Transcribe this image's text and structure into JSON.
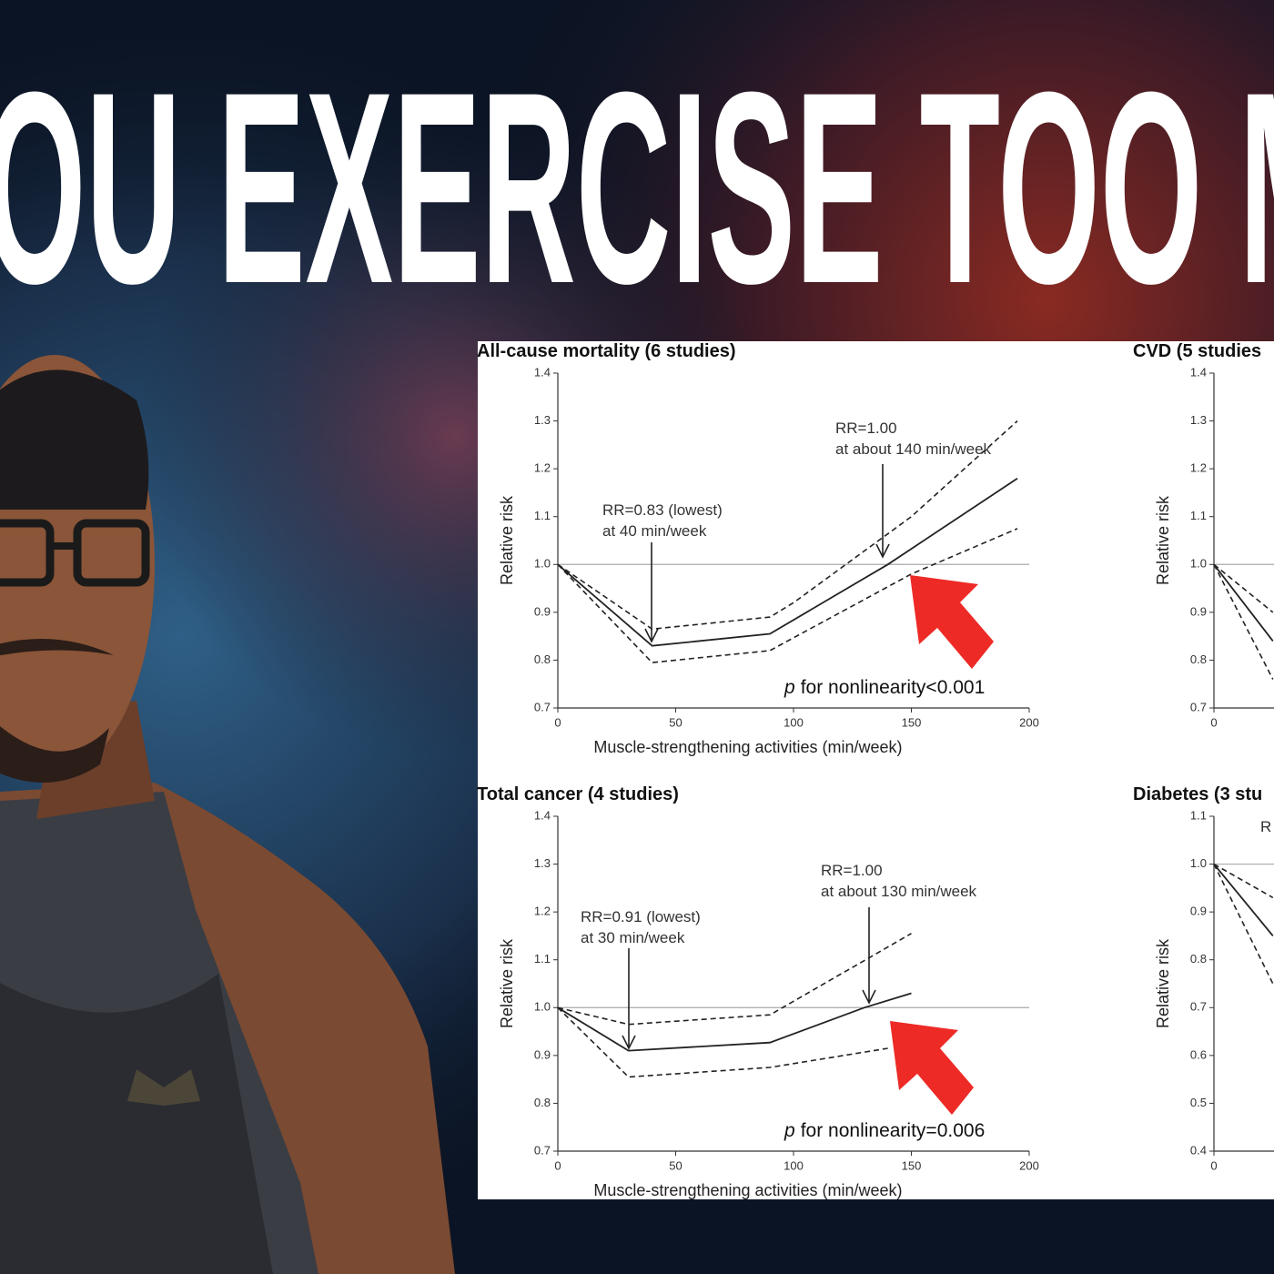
{
  "headline": "OU EXERCISE TOO M",
  "chart_data": [
    {
      "type": "line",
      "title": "All-cause mortality (6 studies)",
      "xlabel": "Muscle-strengthening activities (min/week)",
      "ylabel": "Relative risk",
      "xlim": [
        0,
        200
      ],
      "ylim": [
        0.7,
        1.4
      ],
      "xticks": [
        0,
        50,
        100,
        150,
        200
      ],
      "yticks": [
        0.7,
        0.8,
        0.9,
        {
          "value": 1,
          "label": "1.0"
        },
        1.1,
        1.2,
        1.3,
        1.4
      ],
      "reference_line": 1,
      "series": [
        {
          "color": "#222222",
          "dash": false,
          "x": [
            0,
            40,
            90,
            140,
            195
          ],
          "values": [
            1.0,
            0.83,
            0.855,
            1.0,
            1.18
          ]
        },
        {
          "color": "#222222",
          "dash": true,
          "x": [
            0,
            40,
            90,
            100,
            150,
            195
          ],
          "values": [
            1.0,
            0.865,
            0.89,
            0.92,
            1.1,
            1.3
          ]
        },
        {
          "color": "#222222",
          "dash": true,
          "x": [
            0,
            40,
            90,
            150,
            195
          ],
          "values": [
            1.0,
            0.795,
            0.82,
            0.98,
            1.075
          ]
        }
      ],
      "annotations": [
        "RR=0.83 (lowest)",
        "at 40 min/week",
        "RR=1.00",
        "at about 140 min/week"
      ],
      "note_p": "p",
      "note_text": "for nonlinearity<0.001"
    },
    {
      "type": "line",
      "title": "CVD (5 studies",
      "ylabel": "Relative risk",
      "xlim": [
        0,
        200
      ],
      "ylim": [
        0.7,
        1.4
      ],
      "xticks": [
        0
      ],
      "yticks": [
        0.7,
        0.8,
        0.9,
        {
          "value": 1,
          "label": "1.0"
        },
        1.1,
        1.2,
        1.3,
        1.4
      ],
      "reference_line": 1,
      "series": [
        {
          "color": "#222222",
          "dash": false,
          "x": [
            0,
            25
          ],
          "values": [
            1.0,
            0.84
          ]
        },
        {
          "color": "#222222",
          "dash": true,
          "x": [
            0,
            25
          ],
          "values": [
            1.0,
            0.9
          ]
        },
        {
          "color": "#222222",
          "dash": true,
          "x": [
            0,
            25
          ],
          "values": [
            1.0,
            0.76
          ]
        }
      ]
    },
    {
      "type": "line",
      "title": "Total cancer (4 studies)",
      "xlabel": "Muscle-strengthening activities (min/week)",
      "ylabel": "Relative risk",
      "xlim": [
        0,
        200
      ],
      "ylim": [
        0.7,
        1.4
      ],
      "xticks": [
        0,
        50,
        100,
        150,
        200
      ],
      "yticks": [
        0.7,
        0.8,
        0.9,
        {
          "value": 1,
          "label": "1.0"
        },
        1.1,
        1.2,
        1.3,
        1.4
      ],
      "reference_line": 1,
      "series": [
        {
          "color": "#222222",
          "dash": false,
          "x": [
            0,
            30,
            90,
            130,
            150
          ],
          "values": [
            1.0,
            0.91,
            0.927,
            1.0,
            1.03
          ]
        },
        {
          "color": "#222222",
          "dash": true,
          "x": [
            0,
            30,
            90,
            150
          ],
          "values": [
            1.0,
            0.965,
            0.985,
            1.155
          ]
        },
        {
          "color": "#222222",
          "dash": true,
          "x": [
            0,
            30,
            90,
            140
          ],
          "values": [
            1.0,
            0.855,
            0.875,
            0.915
          ]
        }
      ],
      "annotations": [
        "RR=0.91 (lowest)",
        "at 30 min/week",
        "RR=1.00",
        "at about 130 min/week"
      ],
      "note_p": "p",
      "note_text": "for nonlinearity=0.006"
    },
    {
      "type": "line",
      "title": "Diabetes (3 stu",
      "ylabel": "Relative risk",
      "xlim": [
        0,
        200
      ],
      "ylim": [
        0.4,
        1.1
      ],
      "xticks": [
        0
      ],
      "yticks": [
        0.4,
        0.5,
        0.6,
        0.7,
        0.8,
        0.9,
        {
          "value": 1,
          "label": "1.0"
        },
        1.1
      ],
      "reference_line": 1,
      "series": [
        {
          "color": "#222222",
          "dash": false,
          "x": [
            0,
            25
          ],
          "values": [
            1.0,
            0.85
          ]
        },
        {
          "color": "#222222",
          "dash": true,
          "x": [
            0,
            25
          ],
          "values": [
            1.0,
            0.93
          ]
        },
        {
          "color": "#222222",
          "dash": true,
          "x": [
            0,
            25
          ],
          "values": [
            1.0,
            0.75
          ]
        }
      ],
      "annotations": [
        "R"
      ]
    }
  ]
}
